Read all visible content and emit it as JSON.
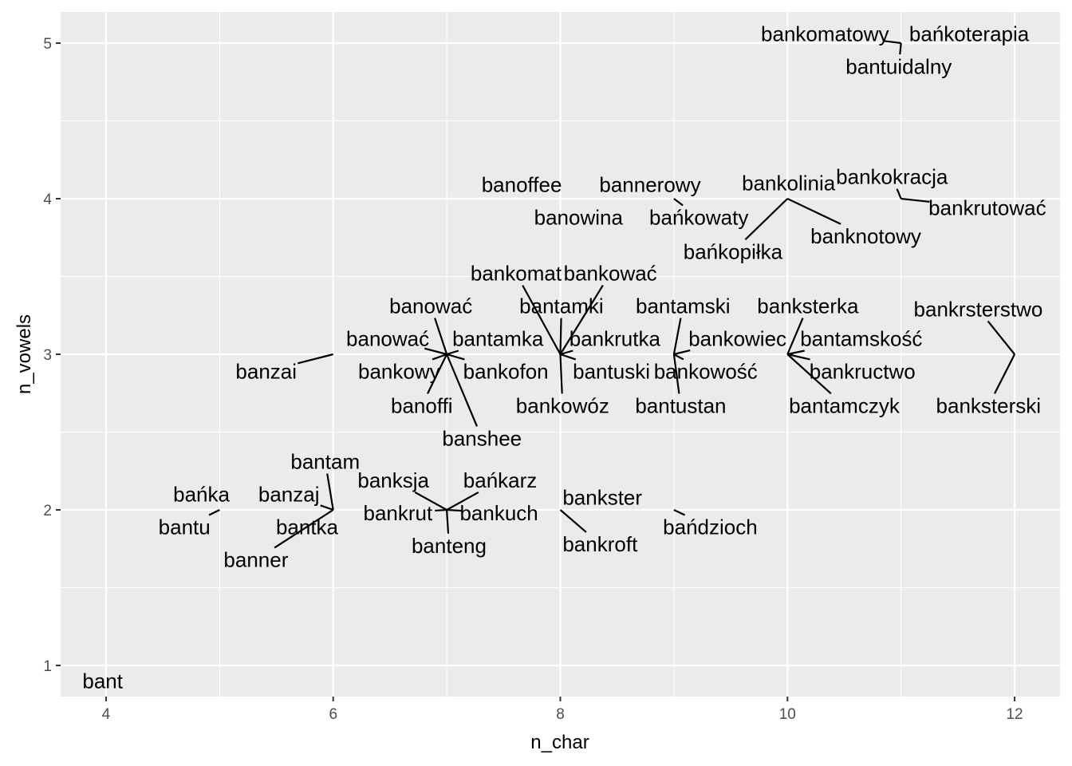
{
  "chart_data": {
    "type": "scatter",
    "xlabel": "n_char",
    "ylabel": "n_vowels",
    "xlim": [
      3.6,
      12.4
    ],
    "ylim": [
      0.8,
      5.2
    ],
    "x_ticks": [
      4,
      6,
      8,
      10,
      12
    ],
    "y_ticks": [
      1,
      2,
      3,
      4,
      5
    ],
    "grid": true,
    "colors": {
      "panel": "#ebebeb",
      "grid": "#ffffff",
      "text": "#000000",
      "tick_text": "#4d4d4d"
    },
    "points": [
      {
        "label": "bant",
        "x": 4,
        "y": 1,
        "lx": 3.97,
        "ly": 0.9
      },
      {
        "label": "bańka",
        "x": 5,
        "y": 2,
        "lx": 4.84,
        "ly": 2.1
      },
      {
        "label": "bantu",
        "x": 5,
        "y": 2,
        "lx": 4.69,
        "ly": 1.89
      },
      {
        "label": "banzaj",
        "x": 6,
        "y": 2,
        "lx": 5.61,
        "ly": 2.1
      },
      {
        "label": "bantam",
        "x": 6,
        "y": 2,
        "lx": 5.93,
        "ly": 2.31
      },
      {
        "label": "bantka",
        "x": 6,
        "y": 2,
        "lx": 5.77,
        "ly": 1.89
      },
      {
        "label": "banner",
        "x": 6,
        "y": 2,
        "lx": 5.32,
        "ly": 1.68
      },
      {
        "label": "banzai",
        "x": 6,
        "y": 3,
        "lx": 5.41,
        "ly": 2.89
      },
      {
        "label": "banksja",
        "x": 7,
        "y": 2,
        "lx": 6.53,
        "ly": 2.19
      },
      {
        "label": "bańkarz",
        "x": 7,
        "y": 2,
        "lx": 7.47,
        "ly": 2.19
      },
      {
        "label": "bankrut",
        "x": 7,
        "y": 2,
        "lx": 6.57,
        "ly": 1.98
      },
      {
        "label": "bankuch",
        "x": 7,
        "y": 2,
        "lx": 7.46,
        "ly": 1.98
      },
      {
        "label": "banteng",
        "x": 7,
        "y": 2,
        "lx": 7.02,
        "ly": 1.77
      },
      {
        "label": "banować",
        "x": 7,
        "y": 3,
        "lx": 6.86,
        "ly": 3.31
      },
      {
        "label": "banować",
        "x": 7,
        "y": 3,
        "lx": 6.48,
        "ly": 3.1
      },
      {
        "label": "bantamka",
        "x": 7,
        "y": 3,
        "lx": 7.45,
        "ly": 3.1
      },
      {
        "label": "bankowy",
        "x": 7,
        "y": 3,
        "lx": 6.58,
        "ly": 2.89
      },
      {
        "label": "bankofon",
        "x": 7,
        "y": 3,
        "lx": 7.52,
        "ly": 2.89
      },
      {
        "label": "banoffi",
        "x": 7,
        "y": 3,
        "lx": 6.78,
        "ly": 2.67
      },
      {
        "label": "banshee",
        "x": 7,
        "y": 3,
        "lx": 7.31,
        "ly": 2.46
      },
      {
        "label": "bankster",
        "x": 8,
        "y": 2,
        "lx": 8.37,
        "ly": 2.08
      },
      {
        "label": "bankroft",
        "x": 8,
        "y": 2,
        "lx": 8.35,
        "ly": 1.78
      },
      {
        "label": "banoffee",
        "x": 8,
        "y": 4,
        "lx": 7.66,
        "ly": 4.09
      },
      {
        "label": "banowina",
        "x": 8,
        "y": 4,
        "lx": 8.16,
        "ly": 3.88
      },
      {
        "label": "bankomat",
        "x": 8,
        "y": 3,
        "lx": 7.61,
        "ly": 3.52
      },
      {
        "label": "bankować",
        "x": 8,
        "y": 3,
        "lx": 8.44,
        "ly": 3.52
      },
      {
        "label": "bantamki",
        "x": 8,
        "y": 3,
        "lx": 8.01,
        "ly": 3.31
      },
      {
        "label": "bankrutka",
        "x": 8,
        "y": 3,
        "lx": 8.48,
        "ly": 3.1
      },
      {
        "label": "bantuski",
        "x": 8,
        "y": 3,
        "lx": 8.45,
        "ly": 2.89
      },
      {
        "label": "bankowóz",
        "x": 8,
        "y": 3,
        "lx": 8.02,
        "ly": 2.67
      },
      {
        "label": "bańdzioch",
        "x": 9,
        "y": 2,
        "lx": 9.32,
        "ly": 1.89
      },
      {
        "label": "bannerowy",
        "x": 9,
        "y": 4,
        "lx": 8.79,
        "ly": 4.09
      },
      {
        "label": "bańkowaty",
        "x": 9,
        "y": 4,
        "lx": 9.22,
        "ly": 3.88
      },
      {
        "label": "bantamski",
        "x": 9,
        "y": 3,
        "lx": 9.08,
        "ly": 3.31
      },
      {
        "label": "bankowiec",
        "x": 9,
        "y": 3,
        "lx": 9.56,
        "ly": 3.1
      },
      {
        "label": "bankowość",
        "x": 9,
        "y": 3,
        "lx": 9.28,
        "ly": 2.89
      },
      {
        "label": "bantustan",
        "x": 9,
        "y": 3,
        "lx": 9.06,
        "ly": 2.67
      },
      {
        "label": "bankolinia",
        "x": 10,
        "y": 4,
        "lx": 10.01,
        "ly": 4.1
      },
      {
        "label": "bańkopiłka",
        "x": 10,
        "y": 4,
        "lx": 9.52,
        "ly": 3.66
      },
      {
        "label": "banknotowy",
        "x": 10,
        "y": 4,
        "lx": 10.69,
        "ly": 3.76
      },
      {
        "label": "banksterka",
        "x": 10,
        "y": 3,
        "lx": 10.18,
        "ly": 3.31
      },
      {
        "label": "bantamskość",
        "x": 10,
        "y": 3,
        "lx": 10.65,
        "ly": 3.1
      },
      {
        "label": "bankructwo",
        "x": 10,
        "y": 3,
        "lx": 10.66,
        "ly": 2.89
      },
      {
        "label": "bantamczyk",
        "x": 10,
        "y": 3,
        "lx": 10.5,
        "ly": 2.67
      },
      {
        "label": "bankomatowy",
        "x": 11,
        "y": 5,
        "lx": 10.33,
        "ly": 5.06
      },
      {
        "label": "bańkoterapia",
        "x": 11,
        "y": 5,
        "lx": 11.6,
        "ly": 5.06
      },
      {
        "label": "bantuidalny",
        "x": 11,
        "y": 5,
        "lx": 10.98,
        "ly": 4.85
      },
      {
        "label": "bankokracja",
        "x": 11,
        "y": 4,
        "lx": 10.92,
        "ly": 4.14
      },
      {
        "label": "bankrutować",
        "x": 11,
        "y": 4,
        "lx": 11.76,
        "ly": 3.94
      },
      {
        "label": "bankrsterstwo",
        "x": 12,
        "y": 3,
        "lx": 11.68,
        "ly": 3.29
      },
      {
        "label": "banksterski",
        "x": 12,
        "y": 3,
        "lx": 11.77,
        "ly": 2.67
      }
    ]
  }
}
